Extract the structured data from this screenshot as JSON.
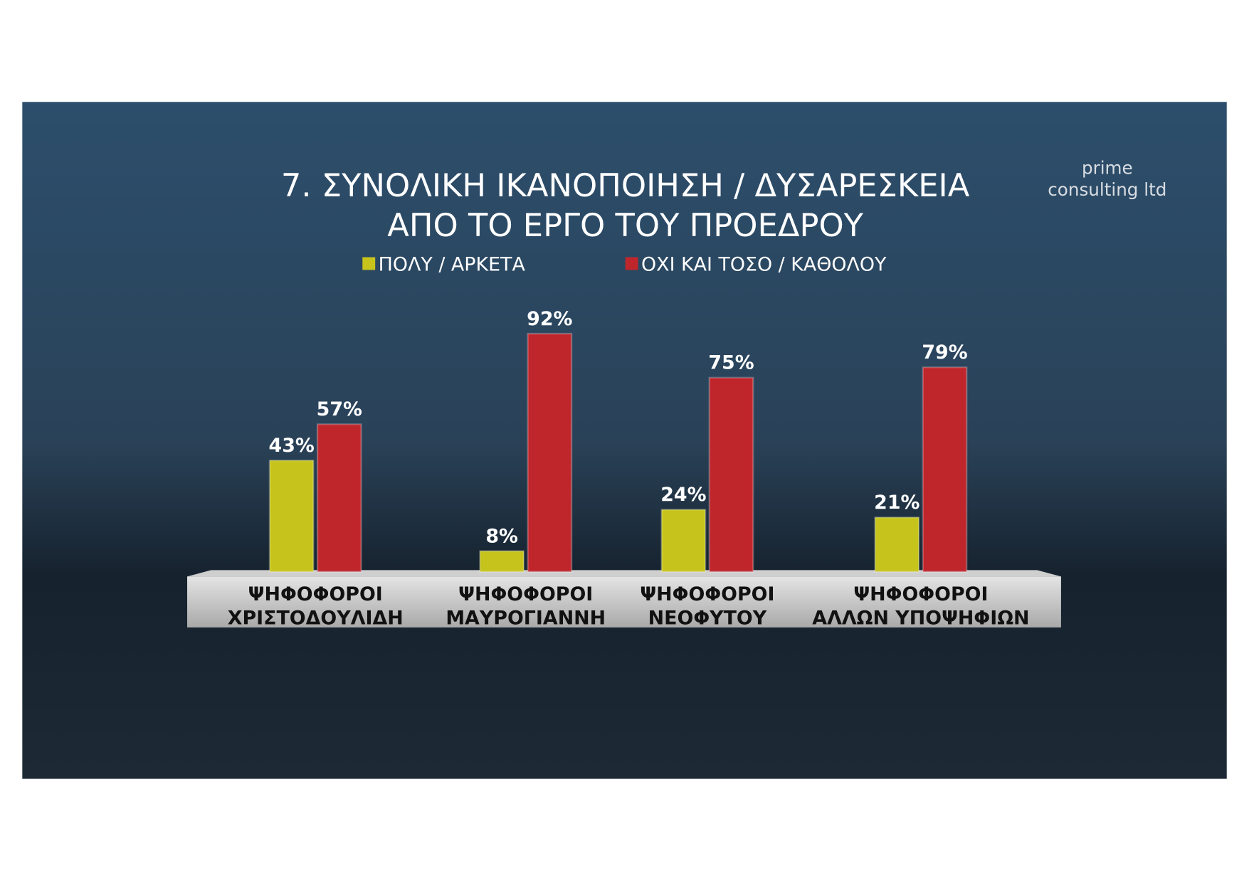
{
  "chart_data": {
    "type": "bar",
    "title": "7. ΣΥΝΟΛΙΚΗ ΙΚΑΝΟΠΟΙΗΣΗ / ΔΥΣΑΡΕΣΚΕΙΑ\nΑΠΟ ΤΟ ΕΡΓΟ ΤΟΥ ΠΡΟΕΔΡΟΥ",
    "categories": [
      "ΨΗΦΟΦΟΡΟΙ\nΧΡΙΣΤΟΔΟΥΛΙΔΗ",
      "ΨΗΦΟΦΟΡΟΙ\nΜΑΥΡΟΓΙΑΝΝΗ",
      "ΨΗΦΟΦΟΡΟΙ\nΝΕΟΦΥΤΟΥ",
      "ΨΗΦΟΦΟΡΟΙ\nΑΛΛΩΝ ΥΠΟΨΗΦΙΩΝ"
    ],
    "series": [
      {
        "name": "ΠΟΛΥ / ΑΡΚΕΤΑ",
        "color": "#c6c41c",
        "values": [
          43,
          8,
          24,
          21
        ],
        "value_labels": [
          "43%",
          "8%",
          "24%",
          "21%"
        ]
      },
      {
        "name": "ΟΧΙ ΚΑΙ ΤΟΣΟ / ΚΑΘΟΛΟΥ",
        "color": "#bf262c",
        "values": [
          57,
          92,
          75,
          79
        ],
        "value_labels": [
          "57%",
          "92%",
          "75%",
          "79%"
        ]
      }
    ]
  },
  "logo": "prime\nconsulting ltd"
}
